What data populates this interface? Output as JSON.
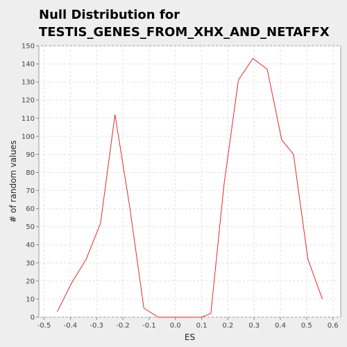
{
  "chart_data": {
    "type": "line",
    "title_lines": [
      "Null Distribution for",
      "TESTIS_GENES_FROM_XHX_AND_NETAFFX"
    ],
    "xlabel": "ES",
    "ylabel": "# of random values",
    "xlim": [
      -0.52,
      0.63
    ],
    "ylim": [
      0,
      150
    ],
    "x_ticks": [
      -0.5,
      -0.4,
      -0.3,
      -0.2,
      -0.1,
      0.0,
      0.1,
      0.2,
      0.3,
      0.4,
      0.5,
      0.6
    ],
    "x_tick_labels": [
      "-0.5",
      "-0.4",
      "-0.3",
      "-0.2",
      "-0.1",
      "0.0",
      "0.1",
      "0.2",
      "0.3",
      "0.4",
      "0.5",
      "0.6"
    ],
    "y_ticks": [
      0,
      10,
      20,
      30,
      40,
      50,
      60,
      70,
      80,
      90,
      100,
      110,
      120,
      130,
      140,
      150
    ],
    "y_tick_labels": [
      "0",
      "10",
      "20",
      "30",
      "40",
      "50",
      "60",
      "70",
      "80",
      "90",
      "100",
      "110",
      "120",
      "130",
      "140",
      "150"
    ],
    "grid": true,
    "series": [
      {
        "color": "#e8262a",
        "x": [
          -0.45,
          -0.395,
          -0.34,
          -0.285,
          -0.23,
          -0.175,
          -0.12,
          -0.065,
          -0.01,
          0.045,
          0.1,
          0.135,
          0.185,
          0.24,
          0.295,
          0.35,
          0.405,
          0.45,
          0.505,
          0.56
        ],
        "y": [
          3,
          19,
          32,
          52,
          112,
          62,
          5,
          0,
          0,
          0,
          0,
          2,
          73,
          131,
          143,
          137,
          98,
          90,
          32,
          10
        ]
      }
    ]
  }
}
